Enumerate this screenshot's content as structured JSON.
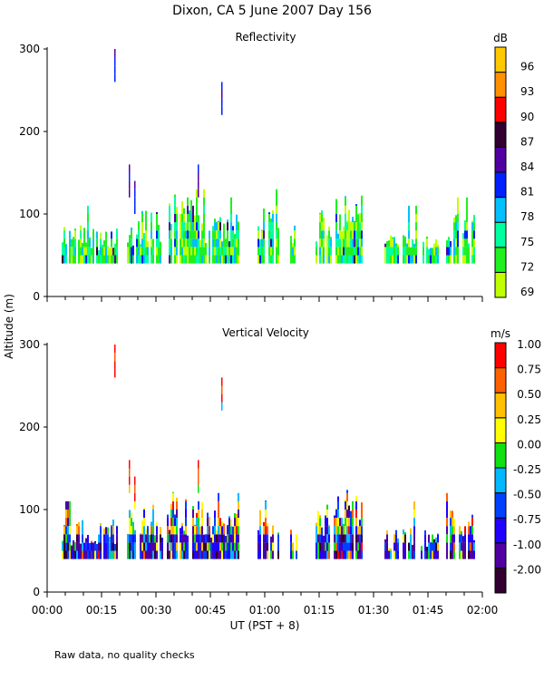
{
  "chart_data": [
    {
      "type": "heatmap",
      "title": "Dixon, CA  5 June 2007  Day 156",
      "subtitle": "Reflectivity",
      "xlabel": "UT  (PST + 8)",
      "ylabel": "Altitude (m)",
      "xlim_minutes": [
        0,
        120
      ],
      "ylim": [
        0,
        300
      ],
      "x_ticks": [
        "00:00",
        "00:15",
        "00:30",
        "00:45",
        "01:00",
        "01:15",
        "01:30",
        "01:45",
        "02:00"
      ],
      "y_ticks": [
        "0",
        "100",
        "200",
        "300"
      ],
      "colorbar": {
        "unit": "dB",
        "labels": [
          "69",
          "72",
          "75",
          "78",
          "81",
          "84",
          "87",
          "90",
          "93",
          "96"
        ],
        "colors": [
          "#c0ff00",
          "#20f020",
          "#00ffa0",
          "#00c0ff",
          "#0020ff",
          "#5000a0",
          "#300030",
          "#ff0000",
          "#ff9000",
          "#ffc800"
        ]
      },
      "color_weights": [
        0.22,
        0.38,
        0.2,
        0.12,
        0.04,
        0.03,
        0.01,
        0,
        0,
        0
      ]
    },
    {
      "type": "heatmap",
      "subtitle": "Vertical Velocity",
      "xlim_minutes": [
        0,
        120
      ],
      "ylim": [
        0,
        300
      ],
      "y_ticks": [
        "0",
        "100",
        "200",
        "300"
      ],
      "colorbar": {
        "unit": "m/s",
        "labels": [
          "-2.00",
          "-1.00",
          "-0.75",
          "-0.50",
          "-0.25",
          "0.00",
          "0.25",
          "0.50",
          "0.75",
          "1.00"
        ],
        "colors": [
          "#300030",
          "#5000a0",
          "#2000ff",
          "#0040ff",
          "#00b8ff",
          "#10e010",
          "#ffff00",
          "#ffc000",
          "#ff6000",
          "#ff0000"
        ]
      },
      "color_weights": [
        0.08,
        0.3,
        0.22,
        0.14,
        0.07,
        0.07,
        0.05,
        0.04,
        0.02,
        0.01
      ]
    }
  ],
  "echo_segments_minutes_topm": [
    [
      4,
      19.5,
      80
    ],
    [
      22,
      26,
      90
    ],
    [
      26,
      32,
      100
    ],
    [
      33,
      40,
      110
    ],
    [
      40,
      47,
      100
    ],
    [
      47,
      53,
      90
    ],
    [
      58,
      64,
      100
    ],
    [
      67,
      69,
      80
    ],
    [
      74,
      79,
      100
    ],
    [
      79,
      87,
      110
    ],
    [
      93,
      97,
      70
    ],
    [
      98,
      102,
      80
    ],
    [
      103,
      108,
      70
    ],
    [
      110,
      118,
      90
    ]
  ],
  "isolated_echoes_minutes_bottom_top": [
    [
      18.5,
      260,
      300
    ],
    [
      22.5,
      120,
      160
    ],
    [
      24,
      100,
      140
    ],
    [
      41.5,
      120,
      160
    ],
    [
      48,
      220,
      260
    ]
  ],
  "footnote": "Raw data, no quality checks"
}
